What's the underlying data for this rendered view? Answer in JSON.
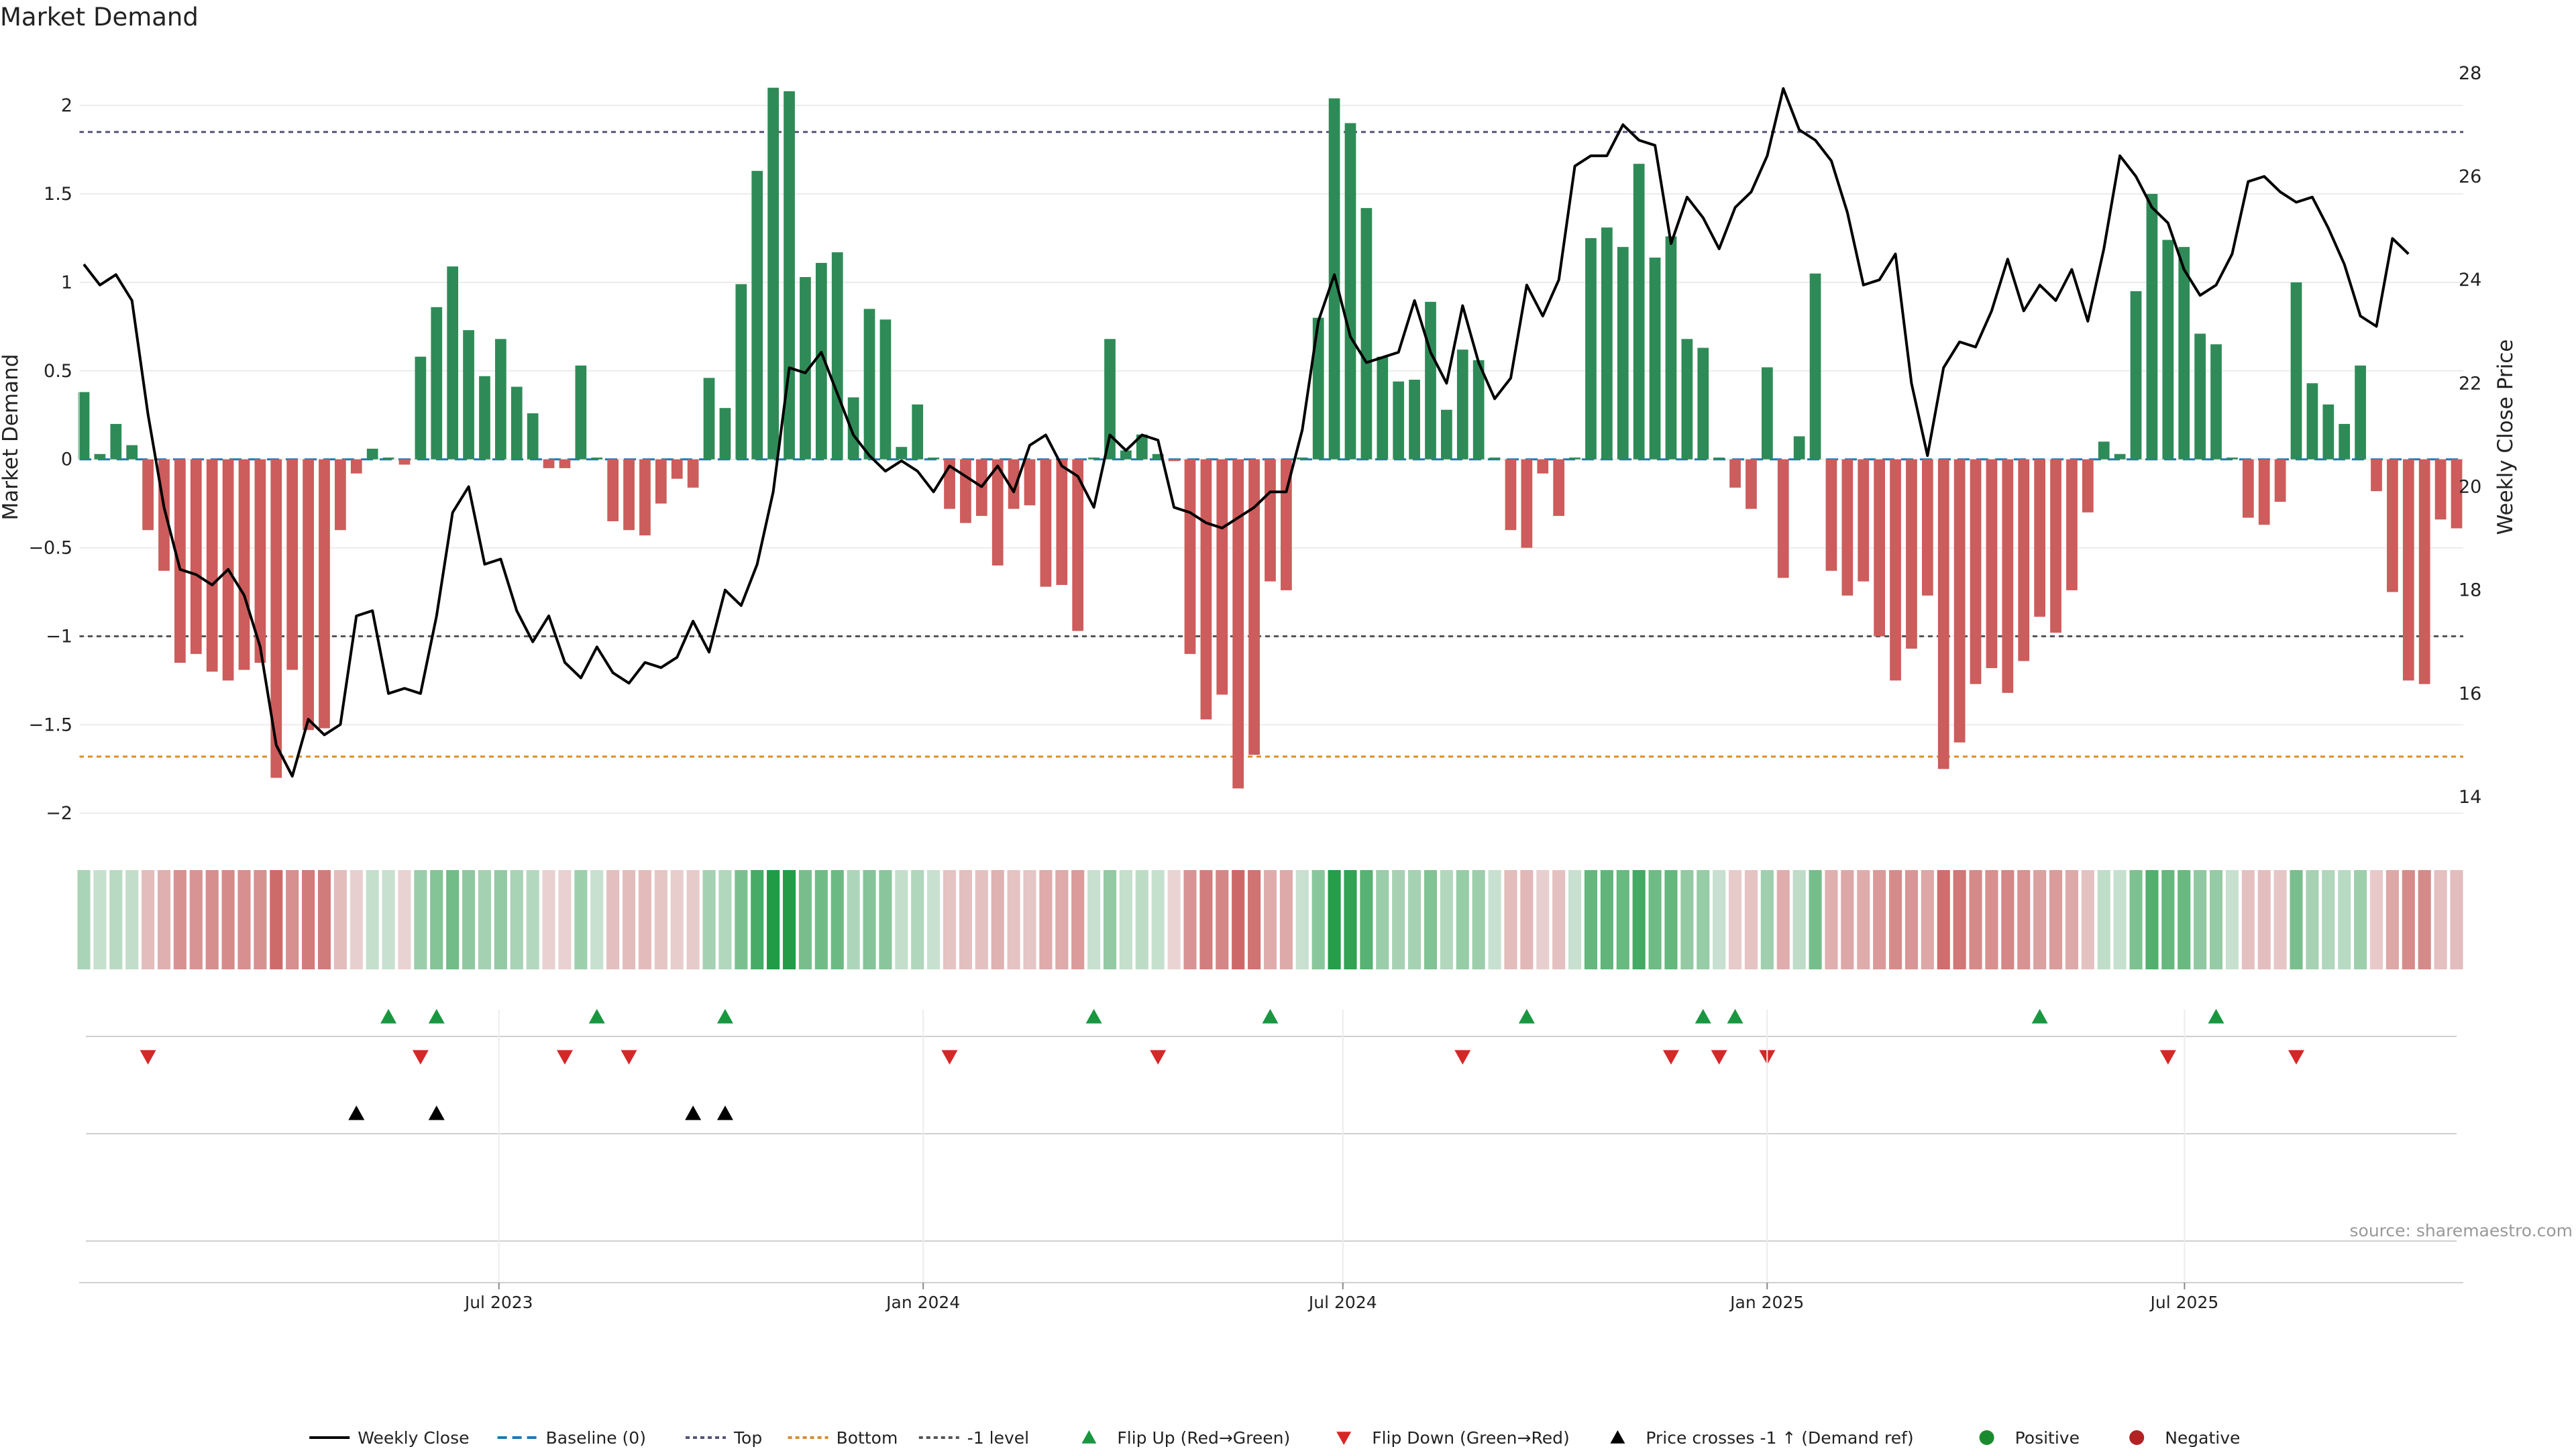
{
  "title": "Market Demand",
  "source": "source: sharemaestro.com",
  "colors": {
    "positive": "#2e8b57",
    "negative": "#cd5c5c",
    "price": "#000000",
    "baseline": "#1f77b4",
    "top": "#555577",
    "bottom": "#d98c2b",
    "minus_one": "#555555",
    "flip_up": "#1a9641",
    "flip_down": "#d62728"
  },
  "chart_data": {
    "type": "bar",
    "title": "Market Demand",
    "ylabel": "Market Demand",
    "y2label": "Weekly Close Price",
    "ylim": [
      -2.2,
      2.3
    ],
    "y2lim": [
      13.0,
      28.4
    ],
    "yticks": [
      "2",
      "1.5",
      "1",
      "0.5",
      "0",
      "−0.5",
      "−1",
      "−1.5",
      "−2"
    ],
    "ytick_values": [
      2,
      1.5,
      1,
      0.5,
      0,
      -0.5,
      -1,
      -1.5,
      -2
    ],
    "y2ticks": [
      "28",
      "26",
      "24",
      "22",
      "20",
      "18",
      "16",
      "14"
    ],
    "y2tick_values": [
      28,
      26,
      24,
      22,
      20,
      18,
      16,
      14
    ],
    "x_start": "2023-01-02",
    "x_end": "2025-10-27",
    "xticks": [
      {
        "date": "2023-07-01",
        "label": "Jul 2023"
      },
      {
        "date": "2024-01-01",
        "label": "Jan 2024"
      },
      {
        "date": "2024-07-01",
        "label": "Jul 2024"
      },
      {
        "date": "2025-01-01",
        "label": "Jan 2025"
      },
      {
        "date": "2025-07-01",
        "label": "Jul 2025"
      }
    ],
    "levels": {
      "top": 1.85,
      "bottom": -1.68,
      "minus_one": -1.0,
      "baseline": 0
    },
    "demand": [
      0.38,
      0.03,
      0.2,
      0.08,
      -0.4,
      -0.63,
      -1.15,
      -1.1,
      -1.2,
      -1.25,
      -1.19,
      -1.15,
      -1.8,
      -1.19,
      -1.53,
      -1.52,
      -0.4,
      -0.08,
      0.06,
      0.01,
      -0.03,
      0.58,
      0.86,
      1.09,
      0.73,
      0.47,
      0.68,
      0.41,
      0.26,
      -0.05,
      -0.05,
      0.53,
      0.01,
      -0.35,
      -0.4,
      -0.43,
      -0.25,
      -0.11,
      -0.16,
      0.46,
      0.29,
      0.99,
      1.63,
      2.1,
      2.08,
      1.03,
      1.11,
      1.17,
      0.35,
      0.85,
      0.79,
      0.07,
      0.31,
      0.01,
      -0.28,
      -0.36,
      -0.32,
      -0.6,
      -0.28,
      -0.26,
      -0.72,
      -0.71,
      -0.97,
      0.01,
      0.68,
      0.05,
      0.14,
      0.03,
      -0.01,
      -1.1,
      -1.47,
      -1.33,
      -1.86,
      -1.67,
      -0.69,
      -0.74,
      0.01,
      0.8,
      2.04,
      1.9,
      1.42,
      0.58,
      0.44,
      0.45,
      0.89,
      0.28,
      0.62,
      0.56,
      0.01,
      -0.4,
      -0.5,
      -0.08,
      -0.32,
      0.01,
      1.25,
      1.31,
      1.2,
      1.67,
      1.14,
      1.26,
      0.68,
      0.63,
      0.01,
      -0.16,
      -0.28,
      0.52,
      -0.67,
      0.13,
      1.05,
      -0.63,
      -0.77,
      -0.69,
      -1.0,
      -1.25,
      -1.07,
      -0.77,
      -1.75,
      -1.6,
      -1.27,
      -1.18,
      -1.32,
      -1.14,
      -0.89,
      -0.98,
      -0.74,
      -0.3,
      0.1,
      0.03,
      0.95,
      1.5,
      1.24,
      1.2,
      0.71,
      0.65,
      0.01,
      -0.33,
      -0.37,
      -0.24,
      1.0,
      0.43,
      0.31,
      0.2,
      0.53,
      -0.18,
      -0.75,
      -1.25,
      -1.27,
      -0.34,
      -0.39
    ],
    "price": [
      24.3,
      23.9,
      24.1,
      23.6,
      21.4,
      19.6,
      18.4,
      18.3,
      18.1,
      18.4,
      17.9,
      16.9,
      15.0,
      14.4,
      15.5,
      15.2,
      15.4,
      17.5,
      17.6,
      16.0,
      16.1,
      16.0,
      17.5,
      19.5,
      20.0,
      18.5,
      18.6,
      17.6,
      17.0,
      17.5,
      16.6,
      16.3,
      16.9,
      16.4,
      16.2,
      16.6,
      16.5,
      16.7,
      17.4,
      16.8,
      18.0,
      17.7,
      18.5,
      19.9,
      22.3,
      22.2,
      22.6,
      21.8,
      21.0,
      20.6,
      20.3,
      20.5,
      20.3,
      19.9,
      20.4,
      20.2,
      20.0,
      20.4,
      19.9,
      20.8,
      21.0,
      20.4,
      20.2,
      19.6,
      21.0,
      20.7,
      21.0,
      20.9,
      19.6,
      19.5,
      19.3,
      19.2,
      19.4,
      19.6,
      19.9,
      19.9,
      21.1,
      23.2,
      24.1,
      22.9,
      22.4,
      22.5,
      22.6,
      23.6,
      22.6,
      22.0,
      23.5,
      22.4,
      21.7,
      22.1,
      23.9,
      23.3,
      24.0,
      26.2,
      26.4,
      26.4,
      27.0,
      26.7,
      26.6,
      24.7,
      25.6,
      25.2,
      24.6,
      25.4,
      25.7,
      26.4,
      27.7,
      26.9,
      26.7,
      26.3,
      25.3,
      23.9,
      24.0,
      24.5,
      22.0,
      20.6,
      22.3,
      22.8,
      22.7,
      23.4,
      24.4,
      23.4,
      23.9,
      23.6,
      24.2,
      23.2,
      24.6,
      26.4,
      26.0,
      25.4,
      25.1,
      24.2,
      23.7,
      23.9,
      24.5,
      25.9,
      26.0,
      25.7,
      25.5,
      25.6,
      25.0,
      24.3,
      23.3,
      23.1,
      24.8,
      24.5
    ],
    "flip_up_index": [
      19,
      22,
      32,
      40,
      63,
      74,
      90,
      101,
      103,
      122,
      133
    ],
    "flip_down_index": [
      4,
      21,
      30,
      34,
      54,
      67,
      86,
      99,
      102,
      105,
      130,
      138
    ],
    "price_cross_index": [
      17,
      22,
      38,
      40
    ],
    "legend_position": "bottom-center",
    "legend": [
      "Weekly Close",
      "Baseline (0)",
      "Top",
      "Bottom",
      "-1 level",
      "Flip Up (Red→Green)",
      "Flip Down (Green→Red)",
      "Price crosses -1 ↑ (Demand ref)",
      "Positive",
      "Negative"
    ]
  }
}
